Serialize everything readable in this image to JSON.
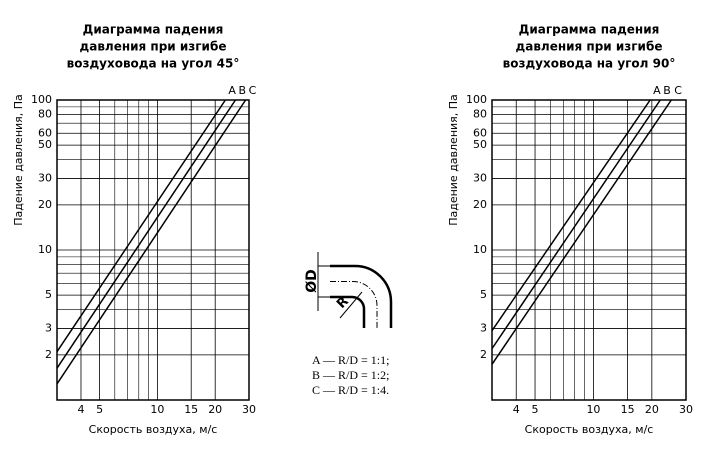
{
  "chart_data": [
    {
      "type": "line",
      "title": [
        "Диаграмма падения",
        "давления при изгибе",
        "воздуховода на угол 45°"
      ],
      "xlabel": "Скорость воздуха, м/с",
      "ylabel": "Падение давления, Па",
      "log_x": true,
      "log_y": true,
      "grid": true,
      "xlim": [
        3,
        30
      ],
      "ylim": [
        1,
        100
      ],
      "xticks": [
        4,
        5,
        10,
        15,
        20,
        30
      ],
      "xminor": [
        6,
        7,
        8,
        9
      ],
      "yticks": [
        2,
        3,
        5,
        10,
        20,
        30,
        50,
        60,
        80,
        100
      ],
      "yminor": [
        4,
        6,
        7,
        8,
        9,
        40,
        70,
        90
      ],
      "series": [
        {
          "name": "A",
          "color": "#000000",
          "x": [
            3,
            22.6
          ],
          "values": [
            2.1,
            100
          ]
        },
        {
          "name": "B",
          "color": "#000000",
          "x": [
            3,
            25.5
          ],
          "values": [
            1.63,
            100
          ]
        },
        {
          "name": "C",
          "color": "#000000",
          "x": [
            3,
            28.8
          ],
          "values": [
            1.28,
            100
          ]
        }
      ]
    },
    {
      "type": "line",
      "title": [
        "Диаграмма падения",
        "давления при изгибе",
        "воздуховода на угол 90°"
      ],
      "xlabel": "Скорость воздуха, м/с",
      "ylabel": "Падение давления, Па",
      "log_x": true,
      "log_y": true,
      "grid": true,
      "xlim": [
        3,
        30
      ],
      "ylim": [
        1,
        100
      ],
      "xticks": [
        4,
        5,
        10,
        15,
        20,
        30
      ],
      "xminor": [
        6,
        7,
        8,
        9
      ],
      "yticks": [
        2,
        3,
        5,
        10,
        20,
        30,
        50,
        60,
        80,
        100
      ],
      "yminor": [
        4,
        6,
        7,
        8,
        9,
        40,
        70,
        90
      ],
      "series": [
        {
          "name": "A",
          "color": "#000000",
          "x": [
            3,
            19.6
          ],
          "values": [
            2.9,
            100
          ]
        },
        {
          "name": "B",
          "color": "#000000",
          "x": [
            3,
            22.1
          ],
          "values": [
            2.2,
            100
          ]
        },
        {
          "name": "C",
          "color": "#000000",
          "x": [
            3,
            25.2
          ],
          "values": [
            1.73,
            100
          ]
        }
      ]
    }
  ],
  "diagram": {
    "diameter": "ØD",
    "radius": "R",
    "legend": [
      "A — R/D = 1:1;",
      "B — R/D = 1:2;",
      "C — R/D = 1:4."
    ]
  }
}
